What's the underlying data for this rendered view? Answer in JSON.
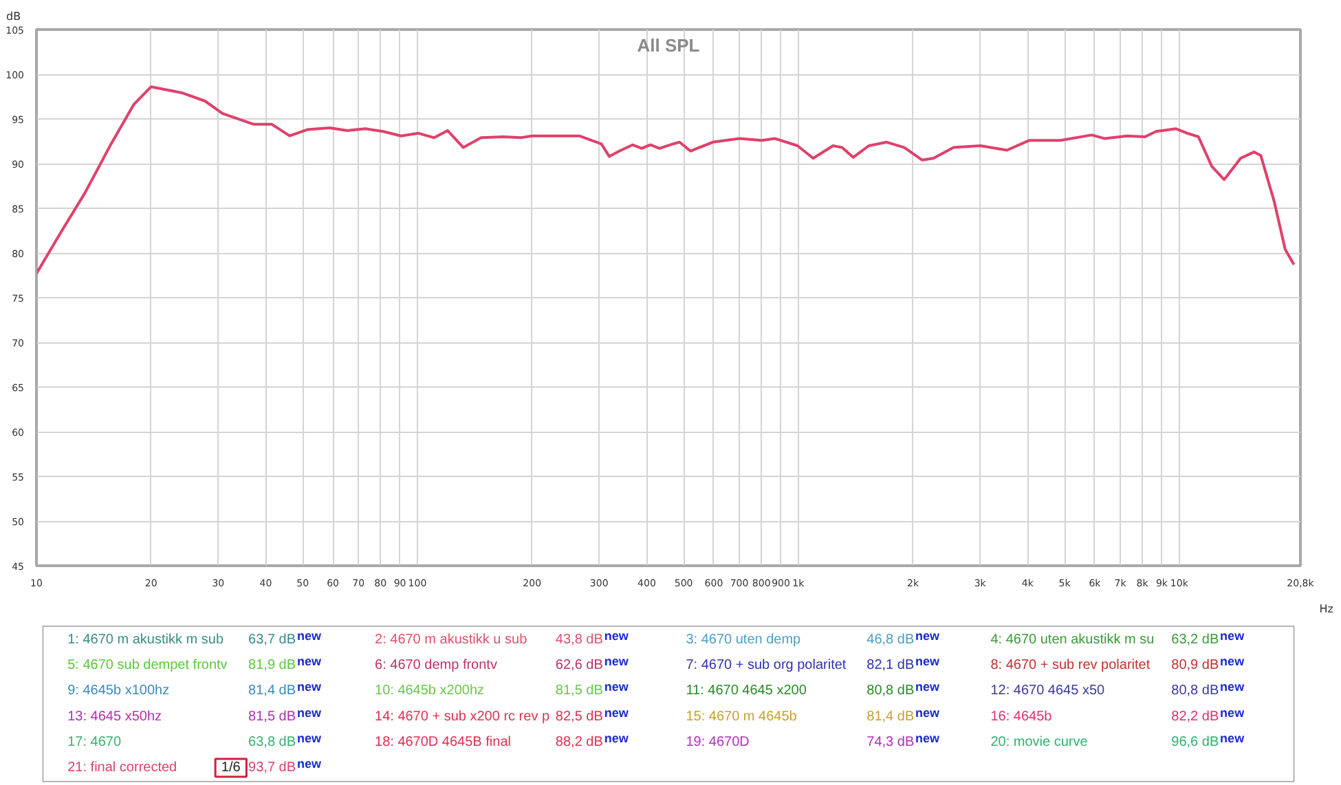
{
  "chart_data": {
    "type": "line",
    "title": "All SPL",
    "xlabel": "Hz",
    "ylabel": "dB",
    "log": "x",
    "grid": true,
    "legend": "bottom",
    "xlim": [
      10,
      20800
    ],
    "ylim": [
      45,
      105
    ],
    "xticks": [
      10,
      20,
      30,
      40,
      50,
      60,
      70,
      80,
      90,
      100,
      200,
      300,
      400,
      500,
      600,
      700,
      800,
      900,
      {
        "value": 1000,
        "label": "1k"
      },
      {
        "value": 2000,
        "label": "2k"
      },
      {
        "value": 3000,
        "label": "3k"
      },
      {
        "value": 4000,
        "label": "4k"
      },
      {
        "value": 5000,
        "label": "5k"
      },
      {
        "value": 6000,
        "label": "6k"
      },
      {
        "value": 7000,
        "label": "7k"
      },
      {
        "value": 8000,
        "label": "8k"
      },
      {
        "value": 9000,
        "label": "9k"
      },
      {
        "value": 10000,
        "label": "10k"
      },
      {
        "value": 20800,
        "label": "20,8k"
      }
    ],
    "yticks": [
      45,
      50,
      55,
      60,
      65,
      70,
      75,
      80,
      85,
      90,
      95,
      100,
      105
    ],
    "series": [
      {
        "name": "21: final corrected",
        "color": "#e0406a",
        "x": [
          10,
          11.7,
          13.4,
          15.7,
          18,
          20,
          24.2,
          27.7,
          30.8,
          37.2,
          41.5,
          46.2,
          51.4,
          58.9,
          65.5,
          73,
          81.3,
          90.6,
          100.7,
          110.7,
          120,
          132,
          147,
          168,
          187,
          200,
          266,
          304,
          319,
          339,
          367,
          388,
          409,
          432,
          469,
          488,
          521,
          596,
          701,
          802,
          869,
          995,
          1094,
          1234,
          1303,
          1394,
          1531,
          1706,
          1898,
          2115,
          2263,
          2556,
          3003,
          3530,
          4040,
          4875,
          5888,
          6380,
          7300,
          8130,
          8690,
          9810,
          10500,
          11230,
          12170,
          13120,
          14490,
          15710,
          16370,
          17740,
          18970,
          20000
        ],
        "values": [
          77.7,
          82.6,
          86.7,
          92.2,
          96.6,
          98.6,
          97.9,
          97.0,
          95.6,
          94.4,
          94.4,
          93.1,
          93.8,
          94.0,
          93.7,
          93.9,
          93.6,
          93.1,
          93.4,
          92.9,
          93.7,
          91.8,
          92.9,
          93.0,
          92.9,
          93.1,
          93.1,
          92.2,
          90.8,
          91.4,
          92.1,
          91.7,
          92.1,
          91.7,
          92.2,
          92.4,
          91.4,
          92.4,
          92.8,
          92.6,
          92.8,
          92.0,
          90.6,
          92.0,
          91.8,
          90.7,
          92.0,
          92.4,
          91.8,
          90.4,
          90.6,
          91.8,
          92.0,
          91.5,
          92.6,
          92.6,
          93.2,
          92.8,
          93.1,
          93.0,
          93.6,
          93.9,
          93.4,
          93.0,
          89.7,
          88.2,
          90.6,
          91.3,
          90.9,
          85.8,
          80.4,
          78.7
        ]
      }
    ],
    "annotations": [
      "1: 4670 m akustikk m sub",
      "63,7 dB$^{new}$",
      "2: 4670 m akustikk u sub",
      "43,8 dB$^{new}$",
      "3: 4670 uten demp",
      "46,8 dB$^{new}$",
      "4: 4670 uten akustikk m su",
      "63,2 dB$^{new}$",
      "5: 4670 sub dempet frontv",
      "81,9 dB$^{new}$",
      "6: 4670 demp frontv",
      "62,6 dB$^{new}$",
      "7: 4670 + sub org polaritet",
      "82,1 dB$^{new}$",
      "8: 4670 + sub rev polaritet",
      "80,9 dB$^{new}$",
      "9: 4645b x100hz",
      "81,4 dB$^{new}$",
      "10: 4645b x200hz",
      "81,5 dB$^{new}$",
      "11: 4670 4645 x200",
      "80,8 dB$^{new}$",
      "12: 4670 4645 x50",
      "80,8 dB$^{new}$",
      "13: 4645 x50hz",
      "81,5 dB$^{new}$",
      "14: 4670 + sub x200 rc rev p",
      "82,5 dB$^{new}$",
      "15: 4670 m 4645b",
      "81,4 dB$^{new}$",
      "16: 4645b",
      "82,2 dB$^{new}$",
      "17: 4670",
      "63,8 dB$^{new}$",
      "18: 4670D 4645B final",
      "88,2 dB$^{new}$",
      "19: 4670D",
      "74,3 dB$^{new}$",
      "20: movie curve",
      "96,6 dB$^{new}$",
      "1/6",
      "93,7 dB$^{new}$"
    ]
  }
}
